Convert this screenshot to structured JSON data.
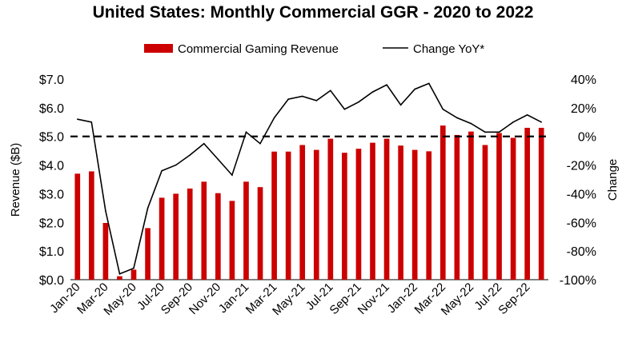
{
  "chart_data": {
    "type": "bar+line",
    "title": "United States: Monthly Commercial GGR - 2020 to 2022",
    "ylabel": "Revenue ($B)",
    "y2label": "Change",
    "ylim": [
      0,
      7
    ],
    "y2lim": [
      -100,
      40
    ],
    "yticks": [
      "$0.0",
      "$1.0",
      "$2.0",
      "$3.0",
      "$4.0",
      "$5.0",
      "$6.0",
      "$7.0"
    ],
    "y2ticks": [
      "-100%",
      "-80%",
      "-60%",
      "-40%",
      "-20%",
      "0%",
      "20%",
      "40%"
    ],
    "xtick_labels": [
      "Jan-20",
      "Mar-20",
      "May-20",
      "Jul-20",
      "Sep-20",
      "Nov-20",
      "Jan-21",
      "Mar-21",
      "May-21",
      "Jul-21",
      "Sep-21",
      "Nov-21",
      "Jan-22",
      "Mar-22",
      "May-22",
      "Jul-22",
      "Sep-22"
    ],
    "legend": {
      "position": "top"
    },
    "reference_line": {
      "axis": "y2",
      "value": 0,
      "style": "dashed"
    },
    "months": [
      "Jan-20",
      "Feb-20",
      "Mar-20",
      "Apr-20",
      "May-20",
      "Jun-20",
      "Jul-20",
      "Aug-20",
      "Sep-20",
      "Oct-20",
      "Nov-20",
      "Dec-20",
      "Jan-21",
      "Feb-21",
      "Mar-21",
      "Apr-21",
      "May-21",
      "Jun-21",
      "Jul-21",
      "Aug-21",
      "Sep-21",
      "Oct-21",
      "Nov-21",
      "Dec-21",
      "Jan-22",
      "Feb-22",
      "Mar-22",
      "Apr-22",
      "May-22",
      "Jun-22",
      "Jul-22",
      "Aug-22",
      "Sep-22",
      "Oct-22"
    ],
    "series": [
      {
        "name": "Commercial Gaming Revenue",
        "type": "bar",
        "axis": "y",
        "color": "#cc0000",
        "values": [
          3.7,
          3.78,
          1.98,
          0.12,
          0.35,
          1.8,
          2.86,
          3.0,
          3.18,
          3.42,
          3.02,
          2.75,
          3.42,
          3.23,
          4.47,
          4.47,
          4.7,
          4.53,
          4.92,
          4.43,
          4.57,
          4.78,
          4.92,
          4.68,
          4.53,
          4.48,
          5.38,
          5.05,
          5.17,
          4.7,
          5.12,
          4.95,
          5.3,
          5.3
        ]
      },
      {
        "name": "Change YoY*",
        "type": "line",
        "axis": "y2",
        "color": "#000000",
        "values": [
          12,
          10,
          -52,
          -96,
          -92,
          -50,
          -24,
          -20,
          -13,
          -5,
          -16,
          -27,
          3,
          -5,
          13,
          26,
          28,
          25,
          32,
          19,
          24,
          31,
          36,
          22,
          33,
          37,
          19,
          13,
          9,
          3,
          3,
          10,
          15,
          10
        ]
      }
    ]
  }
}
